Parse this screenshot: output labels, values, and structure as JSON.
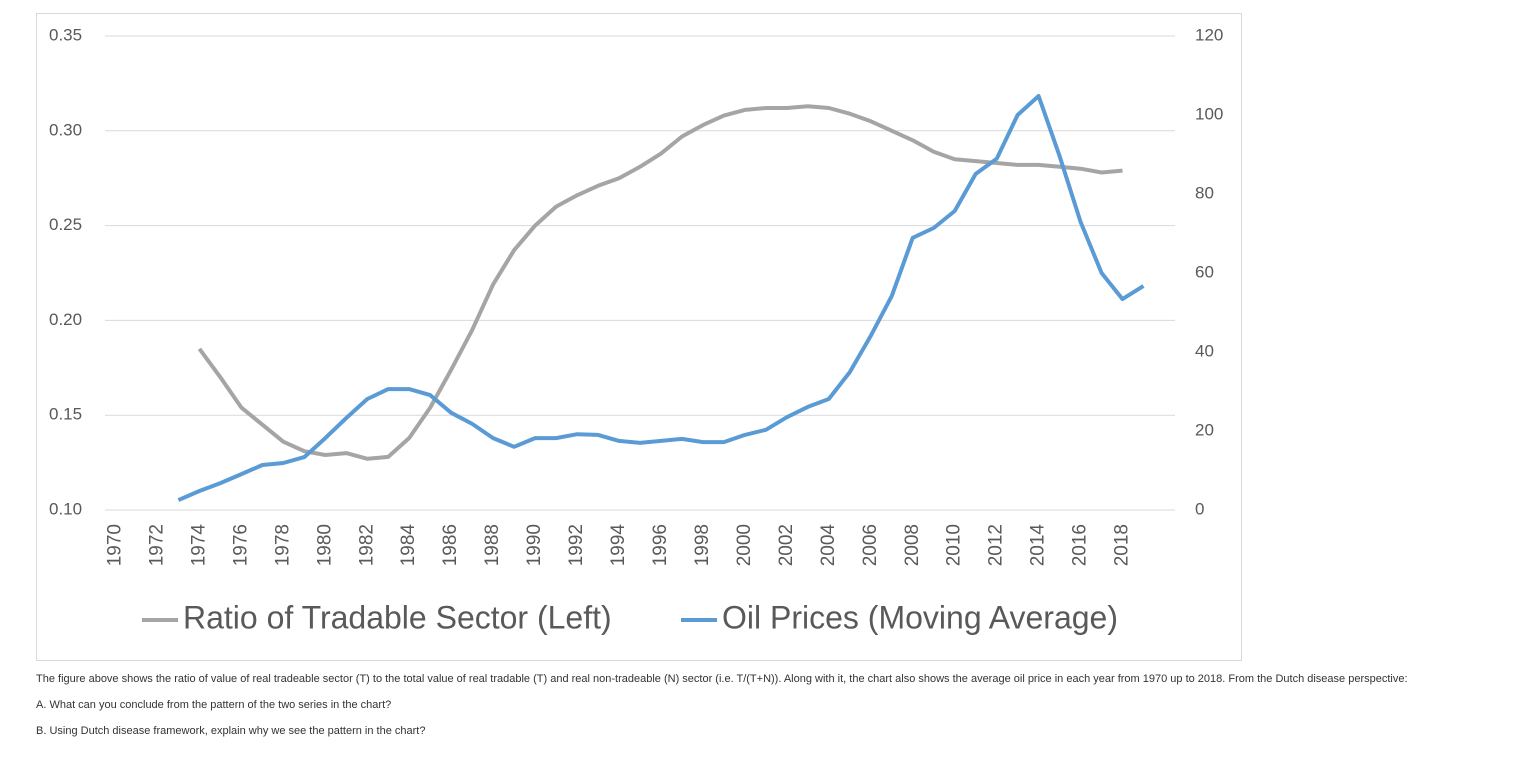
{
  "chart_data": {
    "type": "line",
    "categories": [
      "1970",
      null,
      "1972",
      null,
      "1974",
      null,
      "1976",
      null,
      "1978",
      null,
      "1980",
      null,
      "1982",
      null,
      "1984",
      null,
      "1986",
      null,
      "1988",
      null,
      "1990",
      null,
      "1992",
      null,
      "1994",
      null,
      "1996",
      null,
      "1998",
      null,
      "2000",
      null,
      "2002",
      null,
      "2004",
      null,
      "2006",
      null,
      "2008",
      null,
      "2010",
      null,
      "2012",
      null,
      "2014",
      null,
      "2016",
      null,
      "2018",
      null,
      null
    ],
    "series": [
      {
        "name": "Ratio of Tradable Sector (Left)",
        "color": "#a5a5a5",
        "axis": "y",
        "values": [
          null,
          null,
          null,
          null,
          0.185,
          0.17,
          0.154,
          0.145,
          0.136,
          0.131,
          0.129,
          0.13,
          0.127,
          0.128,
          0.138,
          0.154,
          0.174,
          0.195,
          0.219,
          0.237,
          0.25,
          0.26,
          0.266,
          0.271,
          0.275,
          0.281,
          0.288,
          0.297,
          0.303,
          0.308,
          0.311,
          0.312,
          0.312,
          0.313,
          0.312,
          0.309,
          0.305,
          0.3,
          0.295,
          0.289,
          0.285,
          0.284,
          0.283,
          0.282,
          0.282,
          0.281,
          0.28,
          0.278,
          0.279,
          null,
          null
        ]
      },
      {
        "name": "Oil Prices (Moving Average)",
        "color": "#5b9bd5",
        "axis": "y2",
        "values": [
          null,
          null,
          null,
          2.5,
          4.8,
          6.8,
          9.1,
          11.4,
          11.9,
          13.4,
          18.2,
          23.3,
          28.1,
          30.6,
          30.6,
          29.1,
          24.6,
          21.8,
          18.2,
          16.0,
          18.2,
          18.2,
          19.2,
          19.0,
          17.5,
          17.0,
          17.5,
          18.0,
          17.2,
          17.2,
          19.0,
          20.3,
          23.5,
          26.1,
          28.1,
          34.9,
          44.1,
          54.2,
          68.9,
          71.4,
          75.7,
          85.1,
          88.9,
          100.0,
          104.8,
          89.6,
          72.9,
          60.0,
          53.4,
          56.7,
          null
        ]
      }
    ],
    "ylim": [
      0.1,
      0.35
    ],
    "yticks": [
      {
        "value": 0.1,
        "label": "0.10"
      },
      0.15,
      {
        "value": 0.2,
        "label": "0.20"
      },
      0.25,
      {
        "value": 0.3,
        "label": "0.30"
      },
      0.35
    ],
    "y2lim": [
      0,
      120
    ],
    "y2ticks": [
      0,
      20,
      40,
      60,
      80,
      100,
      120
    ],
    "grid": true,
    "legend": "bottom"
  },
  "notes": [
    "The figure above shows the ratio of value of real tradeable sector (T) to the total value of real tradable (T) and real non-tradeable (N) sector (i.e. T/(T+N)). Along with it, the chart also shows the average oil price in each year from 1970 up to 2018. From the Dutch disease perspective:",
    "A. What can you conclude from the pattern of the two series in the chart?",
    "B. Using Dutch disease framework, explain why we see the pattern in the chart?"
  ]
}
